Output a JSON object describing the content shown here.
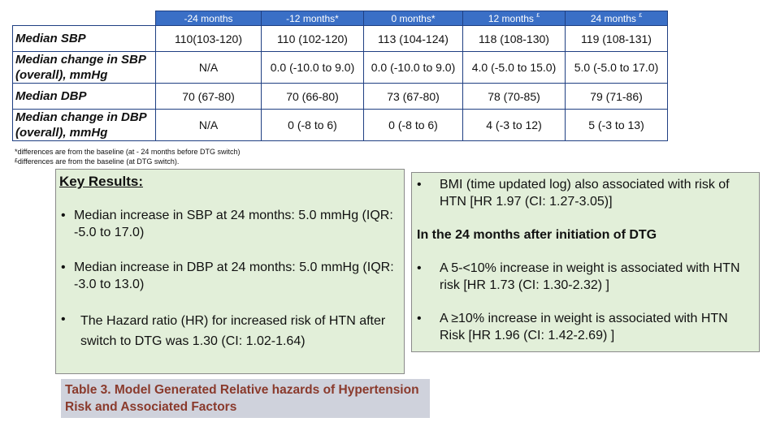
{
  "table": {
    "headers": [
      "",
      "-24 months",
      "-12 months*",
      "0 months*",
      "12 months",
      "24 months"
    ],
    "header_sup": [
      "",
      "",
      "",
      "",
      "£",
      "£"
    ],
    "rows": [
      {
        "label": "Median SBP",
        "values": [
          "110(103-120)",
          "110 (102-120)",
          "113 (104-124)",
          "118 (108-130)",
          "119 (108-131)"
        ]
      },
      {
        "label": "Median change in SBP (overall), mmHg",
        "values": [
          "N/A",
          "0.0 (-10.0 to 9.0)",
          "0.0 (-10.0 to 9.0)",
          "4.0 (-5.0 to 15.0)",
          "5.0 (-5.0 to 17.0)"
        ]
      },
      {
        "label": "Median DBP",
        "values": [
          "70 (67-80)",
          "70 (66-80)",
          "73 (67-80)",
          "78 (70-85)",
          "79 (71-86)"
        ]
      },
      {
        "label": "Median change in DBP (overall), mmHg",
        "values": [
          "N/A",
          "0 (-8 to 6)",
          "0 (-8 to 6)",
          "4 (-3 to 12)",
          "5 (-3 to 13)"
        ]
      }
    ]
  },
  "footnotes": {
    "star": "*differences are from the baseline (at - 24 months before DTG switch)",
    "pound_mark": "£",
    "pound": "differences are from the baseline (at DTG switch)."
  },
  "key_results": {
    "heading": "Key Results:",
    "bullets": [
      "Median increase in SBP at 24 months: 5.0 mmHg (IQR: -5.0 to 17.0)",
      "Median increase in DBP at 24 months: 5.0 mmHg (IQR: -3.0 to 13.0)",
      "The Hazard ratio (HR) for increased risk of HTN after switch to DTG was 1.30 (CI: 1.02-1.64)"
    ]
  },
  "right_panel": {
    "bullet_top": "BMI (time updated log) also associated with risk of HTN  [HR 1.97 (CI: 1.27-3.05)]",
    "heading": "In the 24 months after initiation of DTG",
    "bullets": [
      "A 5-<10% increase in weight is associated with HTN risk [HR 1.73 (CI: 1.30-2.32) ]",
      "A ≥10% increase in weight is associated with HTN Risk [HR 1.96 (CI: 1.42-2.69) ]"
    ]
  },
  "bullet_char": "•",
  "caption": "Table 3. Model Generated  Relative hazards of Hypertension Risk and Associated Factors",
  "colors": {
    "header_bg": "#3a6fc6",
    "panel_bg": "#e2efd9",
    "caption_bg": "#cfd2dc",
    "caption_text": "#8a3a2c"
  }
}
